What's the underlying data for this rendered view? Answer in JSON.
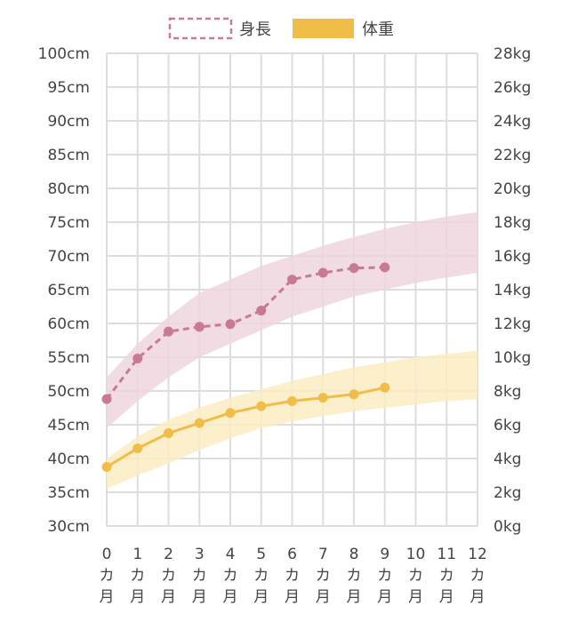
{
  "chart_data": {
    "type": "line",
    "legend": {
      "placement": "top",
      "items": [
        {
          "label": "身長",
          "style": "dashed-outline",
          "color": "#c97a93"
        },
        {
          "label": "体重",
          "style": "filled",
          "color": "#f0bd48"
        }
      ]
    },
    "x": [
      0,
      1,
      2,
      3,
      4,
      5,
      6,
      7,
      8,
      9,
      10,
      11,
      12
    ],
    "x_tick_labels": [
      {
        "num": "0",
        "line2": "カ",
        "line3": "月"
      },
      {
        "num": "1",
        "line2": "カ",
        "line3": "月"
      },
      {
        "num": "2",
        "line2": "カ",
        "line3": "月"
      },
      {
        "num": "3",
        "line2": "カ",
        "line3": "月"
      },
      {
        "num": "4",
        "line2": "カ",
        "line3": "月"
      },
      {
        "num": "5",
        "line2": "カ",
        "line3": "月"
      },
      {
        "num": "6",
        "line2": "カ",
        "line3": "月"
      },
      {
        "num": "7",
        "line2": "カ",
        "line3": "月"
      },
      {
        "num": "8",
        "line2": "カ",
        "line3": "月"
      },
      {
        "num": "9",
        "line2": "カ",
        "line3": "月"
      },
      {
        "num": "10",
        "line2": "カ",
        "line3": "月"
      },
      {
        "num": "11",
        "line2": "カ",
        "line3": "月"
      },
      {
        "num": "12",
        "line2": "カ",
        "line3": "月"
      }
    ],
    "y_left": {
      "unit": "cm",
      "lim": [
        30,
        100
      ],
      "ticks": [
        "30cm",
        "35cm",
        "40cm",
        "45cm",
        "50cm",
        "55cm",
        "60cm",
        "65cm",
        "70cm",
        "75cm",
        "80cm",
        "85cm",
        "90cm",
        "95cm",
        "100cm"
      ]
    },
    "y_right": {
      "unit": "kg",
      "lim": [
        0,
        28
      ],
      "ticks": [
        "0kg",
        "2kg",
        "4kg",
        "6kg",
        "8kg",
        "10kg",
        "12kg",
        "14kg",
        "16kg",
        "18kg",
        "20kg",
        "22kg",
        "24kg",
        "26kg",
        "28kg"
      ]
    },
    "grid": true,
    "series": [
      {
        "name": "身長",
        "axis": "left",
        "color": "#c97a93",
        "line_style": "dashed",
        "x": [
          0,
          1,
          2,
          3,
          4,
          5,
          6,
          7,
          8,
          9
        ],
        "values": [
          48.8,
          54.8,
          58.8,
          59.5,
          59.9,
          61.9,
          66.5,
          67.5,
          68.2,
          68.3
        ]
      },
      {
        "name": "体重",
        "axis": "right",
        "color": "#f0bd48",
        "line_style": "solid",
        "x": [
          0,
          1,
          2,
          3,
          4,
          5,
          6,
          7,
          8,
          9
        ],
        "values": [
          3.5,
          4.6,
          5.5,
          6.1,
          6.7,
          7.1,
          7.4,
          7.6,
          7.8,
          8.2
        ]
      }
    ],
    "bands": [
      {
        "series": "身長",
        "axis": "left",
        "color": "#eed6df",
        "x": [
          0,
          1,
          2,
          3,
          4,
          5,
          6,
          7,
          8,
          9,
          10,
          11,
          12
        ],
        "lower": [
          44.5,
          48.5,
          52.0,
          55.0,
          57.0,
          59.0,
          61.0,
          62.5,
          64.0,
          65.0,
          66.0,
          66.8,
          67.5
        ],
        "upper": [
          52.0,
          57.0,
          61.0,
          64.5,
          66.5,
          68.5,
          70.0,
          71.5,
          72.8,
          74.0,
          75.0,
          75.8,
          76.5
        ]
      },
      {
        "series": "体重",
        "axis": "right",
        "color": "#fbecc3",
        "x": [
          0,
          1,
          2,
          3,
          4,
          5,
          6,
          7,
          8,
          9,
          10,
          11,
          12
        ],
        "lower": [
          2.2,
          3.0,
          3.7,
          4.5,
          5.2,
          5.8,
          6.2,
          6.5,
          6.8,
          7.0,
          7.2,
          7.4,
          7.5
        ],
        "upper": [
          4.0,
          5.3,
          6.3,
          7.0,
          7.6,
          8.1,
          8.6,
          9.0,
          9.4,
          9.7,
          10.0,
          10.2,
          10.4
        ]
      }
    ]
  }
}
